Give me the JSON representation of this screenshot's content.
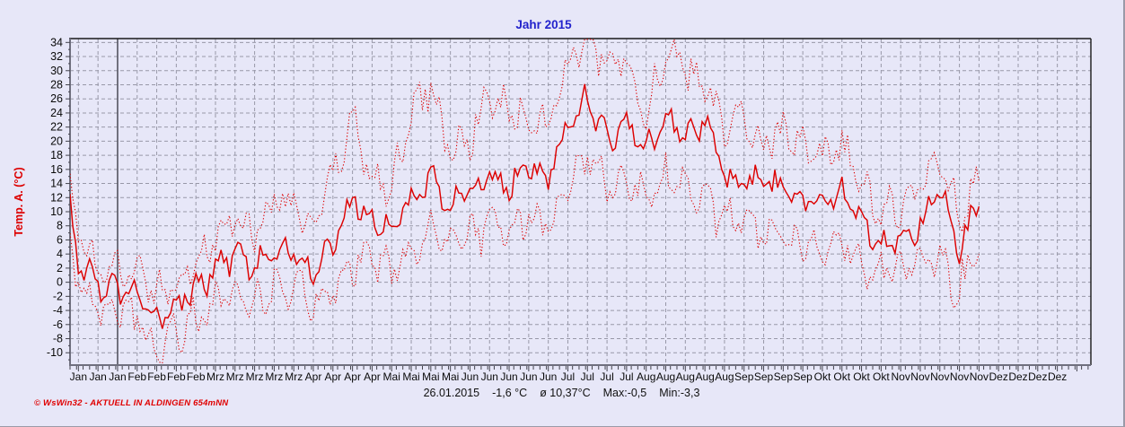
{
  "header": {
    "title": "Jahr 2015",
    "title_color": "#2222cc"
  },
  "y_axis": {
    "label": "Temp. A. (°C)",
    "label_color": "#dd0000",
    "ticks": [
      34,
      32,
      30,
      28,
      26,
      24,
      22,
      20,
      18,
      16,
      14,
      12,
      10,
      8,
      6,
      4,
      2,
      0,
      -2,
      -4,
      -6,
      -8,
      -10
    ]
  },
  "x_axis": {
    "labels": [
      "Jan",
      "Jan",
      "Jan",
      "Feb",
      "Feb",
      "Feb",
      "Feb",
      "Mrz",
      "Mrz",
      "Mrz",
      "Mrz",
      "Mrz",
      "Apr",
      "Apr",
      "Apr",
      "Apr",
      "Mai",
      "Mai",
      "Mai",
      "Mai",
      "Jun",
      "Jun",
      "Jun",
      "Jun",
      "Jun",
      "Jul",
      "Jul",
      "Jul",
      "Jul",
      "Aug",
      "Aug",
      "Aug",
      "Aug",
      "Aug",
      "Sep",
      "Sep",
      "Sep",
      "Sep",
      "Okt",
      "Okt",
      "Okt",
      "Okt",
      "Nov",
      "Nov",
      "Nov",
      "Nov",
      "Nov",
      "Dez",
      "Dez",
      "Dez",
      "Dez"
    ]
  },
  "status_bar": {
    "date": "26.01.2015",
    "temp": "-1,6 °C",
    "avg": "ø 10,37°C",
    "max": "Max:-0,5",
    "min": "Min:-3,3"
  },
  "footer": {
    "text": "© WsWin32  -  AKTUELL IN ALDINGEN 654mNN",
    "color": "#e00000"
  },
  "colors": {
    "series_red": "#dd0000",
    "grid": "#9898a8",
    "frame_dark": "#1a1a1a",
    "frame_gray": "#6f6f7e",
    "marker_line": "#555560",
    "background": "#e7e7f8"
  },
  "chart_data": {
    "type": "line",
    "title": "Jahr 2015",
    "ylabel": "Temp. A. (°C)",
    "ylim": [
      -11.75,
      34.55
    ],
    "x_unit": "day_of_year_2015",
    "x_range_days": [
      0,
      365
    ],
    "data_end_day": 325,
    "grid": "dashed",
    "legend": "none",
    "marker_line_day": 17,
    "sampling": "weekly estimates read from gridlines",
    "anchor_days": [
      0,
      3,
      10,
      17,
      24,
      31,
      38,
      45,
      52,
      59,
      66,
      73,
      80,
      87,
      94,
      101,
      108,
      115,
      122,
      129,
      136,
      143,
      150,
      157,
      164,
      171,
      178,
      185,
      192,
      199,
      206,
      213,
      220,
      227,
      234,
      241,
      248,
      255,
      262,
      269,
      276,
      283,
      290,
      297,
      304,
      311,
      318,
      325
    ],
    "series": [
      {
        "name": "max",
        "style": "dotted",
        "color": "#dd0000",
        "noise_amp": 2.4,
        "values": [
          14,
          6,
          2,
          1,
          1,
          -1.5,
          0.5,
          3,
          6,
          9,
          7,
          12,
          11,
          7,
          15,
          23,
          15,
          13,
          24,
          28,
          18,
          21,
          26,
          24,
          23,
          22,
          31,
          34.4,
          31,
          32,
          24,
          33,
          30,
          28,
          22,
          23,
          20,
          21,
          19,
          17,
          19,
          14,
          9.5,
          11,
          14,
          17,
          9,
          15
        ]
      },
      {
        "name": "mean",
        "style": "solid",
        "color": "#dd0000",
        "noise_amp": 1.7,
        "values": [
          10,
          2.5,
          -0.5,
          -1,
          -2,
          -5.5,
          -3,
          -1,
          1.5,
          4,
          2,
          4.5,
          4,
          1.5,
          5,
          12,
          9,
          8,
          12,
          15,
          11,
          13,
          15.5,
          13.5,
          16.5,
          15,
          22,
          26.5,
          20,
          23,
          18.5,
          23.5,
          21.5,
          23,
          15,
          14,
          14,
          13,
          12,
          11,
          13,
          9,
          5.5,
          6.5,
          8,
          13,
          5,
          11
        ]
      },
      {
        "name": "min",
        "style": "dotted",
        "color": "#dd0000",
        "noise_amp": 2.4,
        "values": [
          7,
          -1,
          -4,
          -4,
          -5,
          -9.5,
          -7,
          -5,
          -2.5,
          -1,
          -3.5,
          -0.5,
          0,
          -3.5,
          -1,
          3,
          3,
          2,
          4,
          7,
          5,
          6,
          8,
          8,
          9,
          8,
          13,
          17.5,
          13,
          15,
          12,
          15,
          13,
          11,
          9,
          8,
          7,
          6,
          5,
          5,
          6,
          3,
          1,
          2.5,
          4,
          3,
          -1,
          5
        ]
      }
    ]
  }
}
